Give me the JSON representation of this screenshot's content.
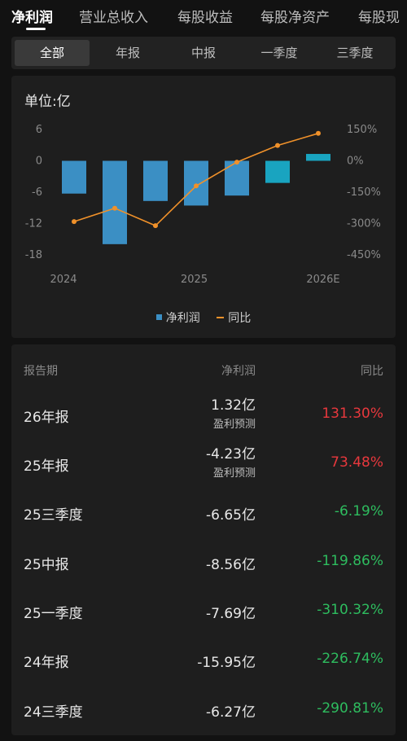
{
  "tabs": [
    "净利润",
    "营业总收入",
    "每股收益",
    "每股净资产",
    "每股现"
  ],
  "period_tabs": [
    "全部",
    "年报",
    "中报",
    "一季度",
    "三季度"
  ],
  "unit_label": "单位:亿",
  "colors": {
    "bar": "#3b8fc4",
    "bar_forecast": "#19a4c0",
    "line": "#f0912a",
    "positive": "#e8383d",
    "negative": "#2ebd5f"
  },
  "chart_data": {
    "type": "bar+line",
    "categories": [
      "24三季度",
      "24年报",
      "25一季度",
      "25中报",
      "25三季度",
      "25年报",
      "26年报"
    ],
    "x_tick_labels": [
      "2024",
      "2025",
      "2026E"
    ],
    "series": [
      {
        "name": "净利润",
        "type": "bar",
        "axis": "left",
        "values": [
          -6.27,
          -15.95,
          -7.69,
          -8.56,
          -6.65,
          -4.23,
          1.32
        ]
      },
      {
        "name": "同比",
        "type": "line",
        "axis": "right",
        "values": [
          -290.81,
          -226.74,
          -310.32,
          -119.86,
          -6.19,
          73.48,
          131.3
        ]
      }
    ],
    "forecast_categories": [
      "25年报",
      "26年报"
    ],
    "y_left": {
      "ticks": [
        "6",
        "0",
        "-6",
        "-12",
        "-18"
      ],
      "range": [
        -18,
        6
      ]
    },
    "y_right": {
      "ticks": [
        "150%",
        "0%",
        "-150%",
        "-300%",
        "-450%"
      ],
      "range": [
        -450,
        150
      ]
    },
    "legend_position": "bottom-center",
    "grid": false
  },
  "table": {
    "headers": [
      "报告期",
      "净利润",
      "同比"
    ],
    "rows": [
      {
        "period": "26年报",
        "value": "1.32亿",
        "note": "盈利预测",
        "yoy": "131.30%",
        "dir": "pos"
      },
      {
        "period": "25年报",
        "value": "-4.23亿",
        "note": "盈利预测",
        "yoy": "73.48%",
        "dir": "pos"
      },
      {
        "period": "25三季度",
        "value": "-6.65亿",
        "note": "",
        "yoy": "-6.19%",
        "dir": "neg"
      },
      {
        "period": "25中报",
        "value": "-8.56亿",
        "note": "",
        "yoy": "-119.86%",
        "dir": "neg"
      },
      {
        "period": "25一季度",
        "value": "-7.69亿",
        "note": "",
        "yoy": "-310.32%",
        "dir": "neg"
      },
      {
        "period": "24年报",
        "value": "-15.95亿",
        "note": "",
        "yoy": "-226.74%",
        "dir": "neg"
      },
      {
        "period": "24三季度",
        "value": "-6.27亿",
        "note": "",
        "yoy": "-290.81%",
        "dir": "neg"
      }
    ]
  }
}
